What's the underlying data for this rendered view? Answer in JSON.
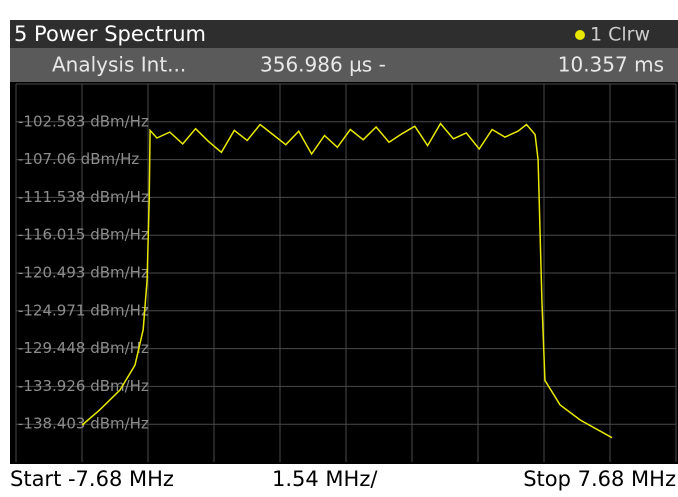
{
  "chart_data": {
    "type": "line",
    "title": "5 Power Spectrum",
    "subtitle_parts": [
      "Analysis Int...",
      "356.986 µs -",
      "10.357 ms"
    ],
    "footer_parts": [
      "Start -7.68 MHz",
      "1.54 MHz/",
      "Stop 7.68 MHz"
    ],
    "xlim": [
      -7.68,
      7.68
    ],
    "ylim": [
      -142.88,
      -98.105
    ],
    "yticks": [
      {
        "value": -102.583,
        "label": "-102.583 dBm/Hz"
      },
      {
        "value": -107.06,
        "label": "-107.06 dBm/Hz"
      },
      {
        "value": -111.538,
        "label": "-111.538 dBm/Hz"
      },
      {
        "value": -116.015,
        "label": "-116.015 dBm/Hz"
      },
      {
        "value": -120.493,
        "label": "-120.493 dBm/Hz"
      },
      {
        "value": -124.971,
        "label": "-124.971 dBm/Hz"
      },
      {
        "value": -129.448,
        "label": "-129.448 dBm/Hz"
      },
      {
        "value": -133.926,
        "label": "-133.926 dBm/Hz"
      },
      {
        "value": -138.403,
        "label": "-138.403 dBm/Hz"
      }
    ],
    "grid": true,
    "series": [
      {
        "name": "1 Clrw",
        "color": "#e8e800",
        "x": [
          -6.14,
          -5.73,
          -5.26,
          -4.91,
          -4.72,
          -4.63,
          -4.58,
          -4.56,
          -4.4,
          -4.1,
          -3.8,
          -3.5,
          -3.2,
          -2.9,
          -2.6,
          -2.3,
          -2.0,
          -1.7,
          -1.4,
          -1.1,
          -0.8,
          -0.5,
          -0.2,
          0.1,
          0.4,
          0.7,
          1.0,
          1.3,
          1.6,
          1.9,
          2.2,
          2.5,
          2.8,
          3.1,
          3.4,
          3.7,
          4.0,
          4.2,
          4.4,
          4.47,
          4.56,
          4.63,
          4.98,
          5.45,
          6.19
        ],
        "values": [
          -138.5,
          -136.7,
          -134.35,
          -131.4,
          -127.2,
          -121.3,
          -111.8,
          -103.6,
          -104.5,
          -103.8,
          -105.2,
          -103.4,
          -104.9,
          -106.2,
          -103.6,
          -104.8,
          -102.9,
          -104.1,
          -105.3,
          -103.7,
          -106.4,
          -104.2,
          -105.6,
          -103.5,
          -104.7,
          -103.2,
          -105.0,
          -104.0,
          -103.1,
          -105.4,
          -102.8,
          -104.6,
          -103.9,
          -105.8,
          -103.5,
          -104.4,
          -103.7,
          -102.9,
          -104.1,
          -107.1,
          -123.7,
          -133.2,
          -136.1,
          -137.9,
          -140.0
        ]
      }
    ]
  }
}
